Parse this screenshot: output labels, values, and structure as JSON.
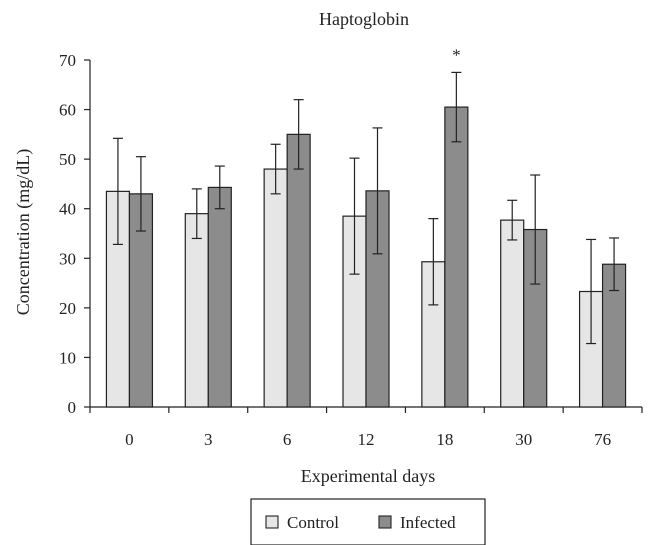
{
  "chart_data": {
    "type": "bar",
    "title": "Haptoglobin",
    "xlabel": "Experimental days",
    "ylabel": "Concentration (mg/dL)",
    "categories": [
      "0",
      "3",
      "6",
      "12",
      "18",
      "30",
      "76"
    ],
    "ylim": [
      0,
      70
    ],
    "yticks": [
      "0",
      "10",
      "20",
      "30",
      "40",
      "50",
      "60",
      "70"
    ],
    "grid": false,
    "legend_position": "bottom",
    "series": [
      {
        "name": "Control",
        "color": "#e6e6e6",
        "values": [
          43.5,
          39,
          48,
          38.5,
          29.3,
          37.7,
          23.3
        ],
        "errors": [
          10.7,
          5,
          5,
          11.7,
          8.7,
          4,
          10.5
        ]
      },
      {
        "name": "Infected",
        "color": "#8c8c8c",
        "values": [
          43,
          44.3,
          55,
          43.6,
          60.5,
          35.8,
          28.8
        ],
        "errors": [
          7.5,
          4.3,
          7,
          12.7,
          7,
          11,
          5.3
        ]
      }
    ],
    "annotations": [
      {
        "text": "*",
        "category": "18",
        "series": "Infected"
      }
    ]
  }
}
